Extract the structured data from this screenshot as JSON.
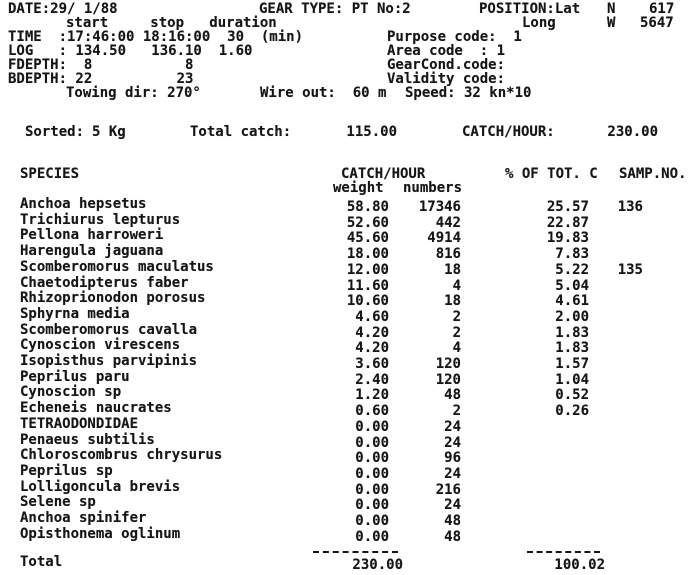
{
  "header": {
    "date": "DATE:29/ 1/88",
    "gear_type": "GEAR TYPE: PT No:2",
    "position_label": "POSITION:Lat",
    "lat_hem": "N",
    "lat_value": "617",
    "col_headers": "start     stop   duration",
    "long_label": "Long",
    "long_hem": "W",
    "long_value": "5647",
    "time_line": "TIME  :17:46:00 18:16:00  30  (min)",
    "purpose_code": "Purpose code:  1",
    "log_line": "LOG   : 134.50   136.10  1.60",
    "area_code": "Area code  : 1",
    "fdepth_line": "FDEPTH:  8           8",
    "gearcond_code": "GearCond.code:",
    "bdepth_line": "BDEPTH: 22          23",
    "validity_code": "Validity code:",
    "towing": "Towing dir: 270°",
    "wire": "Wire out:  60 m",
    "speed": "Speed: 32 kn*10"
  },
  "summary": {
    "sorted_label": "Sorted:",
    "sorted_value": "5 Kg",
    "total_catch_label": "Total catch:",
    "total_catch_value": "115.00",
    "catch_hour_label": "CATCH/HOUR:",
    "catch_hour_value": "230.00"
  },
  "table": {
    "col_species": "SPECIES",
    "col_catch_hour": "CATCH/HOUR",
    "col_pct": "% OF TOT. C",
    "col_samp": "SAMP.NO.",
    "sub_weight": "weight",
    "sub_numbers": "numbers",
    "rows": [
      {
        "name": "Anchoa hepsetus",
        "weight": "58.80",
        "numbers": "17346",
        "pct": "25.57",
        "samp": "136"
      },
      {
        "name": "Trichiurus lepturus",
        "weight": "52.60",
        "numbers": "442",
        "pct": "22.87",
        "samp": ""
      },
      {
        "name": "Pellona harroweri",
        "weight": "45.60",
        "numbers": "4914",
        "pct": "19.83",
        "samp": ""
      },
      {
        "name": "Harengula jaguana",
        "weight": "18.00",
        "numbers": "816",
        "pct": "7.83",
        "samp": ""
      },
      {
        "name": "Scomberomorus maculatus",
        "weight": "12.00",
        "numbers": "18",
        "pct": "5.22",
        "samp": "135"
      },
      {
        "name": "Chaetodipterus faber",
        "weight": "11.60",
        "numbers": "4",
        "pct": "5.04",
        "samp": ""
      },
      {
        "name": "Rhizoprionodon porosus",
        "weight": "10.60",
        "numbers": "18",
        "pct": "4.61",
        "samp": ""
      },
      {
        "name": "Sphyrna media",
        "weight": "4.60",
        "numbers": "2",
        "pct": "2.00",
        "samp": ""
      },
      {
        "name": "Scomberomorus cavalla",
        "weight": "4.20",
        "numbers": "2",
        "pct": "1.83",
        "samp": ""
      },
      {
        "name": "Cynoscion virescens",
        "weight": "4.20",
        "numbers": "4",
        "pct": "1.83",
        "samp": ""
      },
      {
        "name": "Isopisthus parvipinis",
        "weight": "3.60",
        "numbers": "120",
        "pct": "1.57",
        "samp": ""
      },
      {
        "name": "Peprilus paru",
        "weight": "2.40",
        "numbers": "120",
        "pct": "1.04",
        "samp": ""
      },
      {
        "name": "Cynoscion sp",
        "weight": "1.20",
        "numbers": "48",
        "pct": "0.52",
        "samp": ""
      },
      {
        "name": "Echeneis naucrates",
        "weight": "0.60",
        "numbers": "2",
        "pct": "0.26",
        "samp": ""
      },
      {
        "name": "TETRAODONDIDAE",
        "weight": "0.00",
        "numbers": "24",
        "pct": "",
        "samp": ""
      },
      {
        "name": "Penaeus subtilis",
        "weight": "0.00",
        "numbers": "24",
        "pct": "",
        "samp": ""
      },
      {
        "name": "Chloroscombrus chrysurus",
        "weight": "0.00",
        "numbers": "96",
        "pct": "",
        "samp": ""
      },
      {
        "name": "Peprilus sp",
        "weight": "0.00",
        "numbers": "24",
        "pct": "",
        "samp": ""
      },
      {
        "name": "Lolligoncula brevis",
        "weight": "0.00",
        "numbers": "216",
        "pct": "",
        "samp": ""
      },
      {
        "name": "Selene sp",
        "weight": "0.00",
        "numbers": "24",
        "pct": "",
        "samp": ""
      },
      {
        "name": "Anchoa spinifer",
        "weight": "0.00",
        "numbers": "48",
        "pct": "",
        "samp": ""
      },
      {
        "name": "Opisthonema oglinum",
        "weight": "0.00",
        "numbers": "48",
        "pct": "",
        "samp": ""
      }
    ],
    "total_label": "Total",
    "total_weight": "230.00",
    "total_pct": "100.02"
  }
}
